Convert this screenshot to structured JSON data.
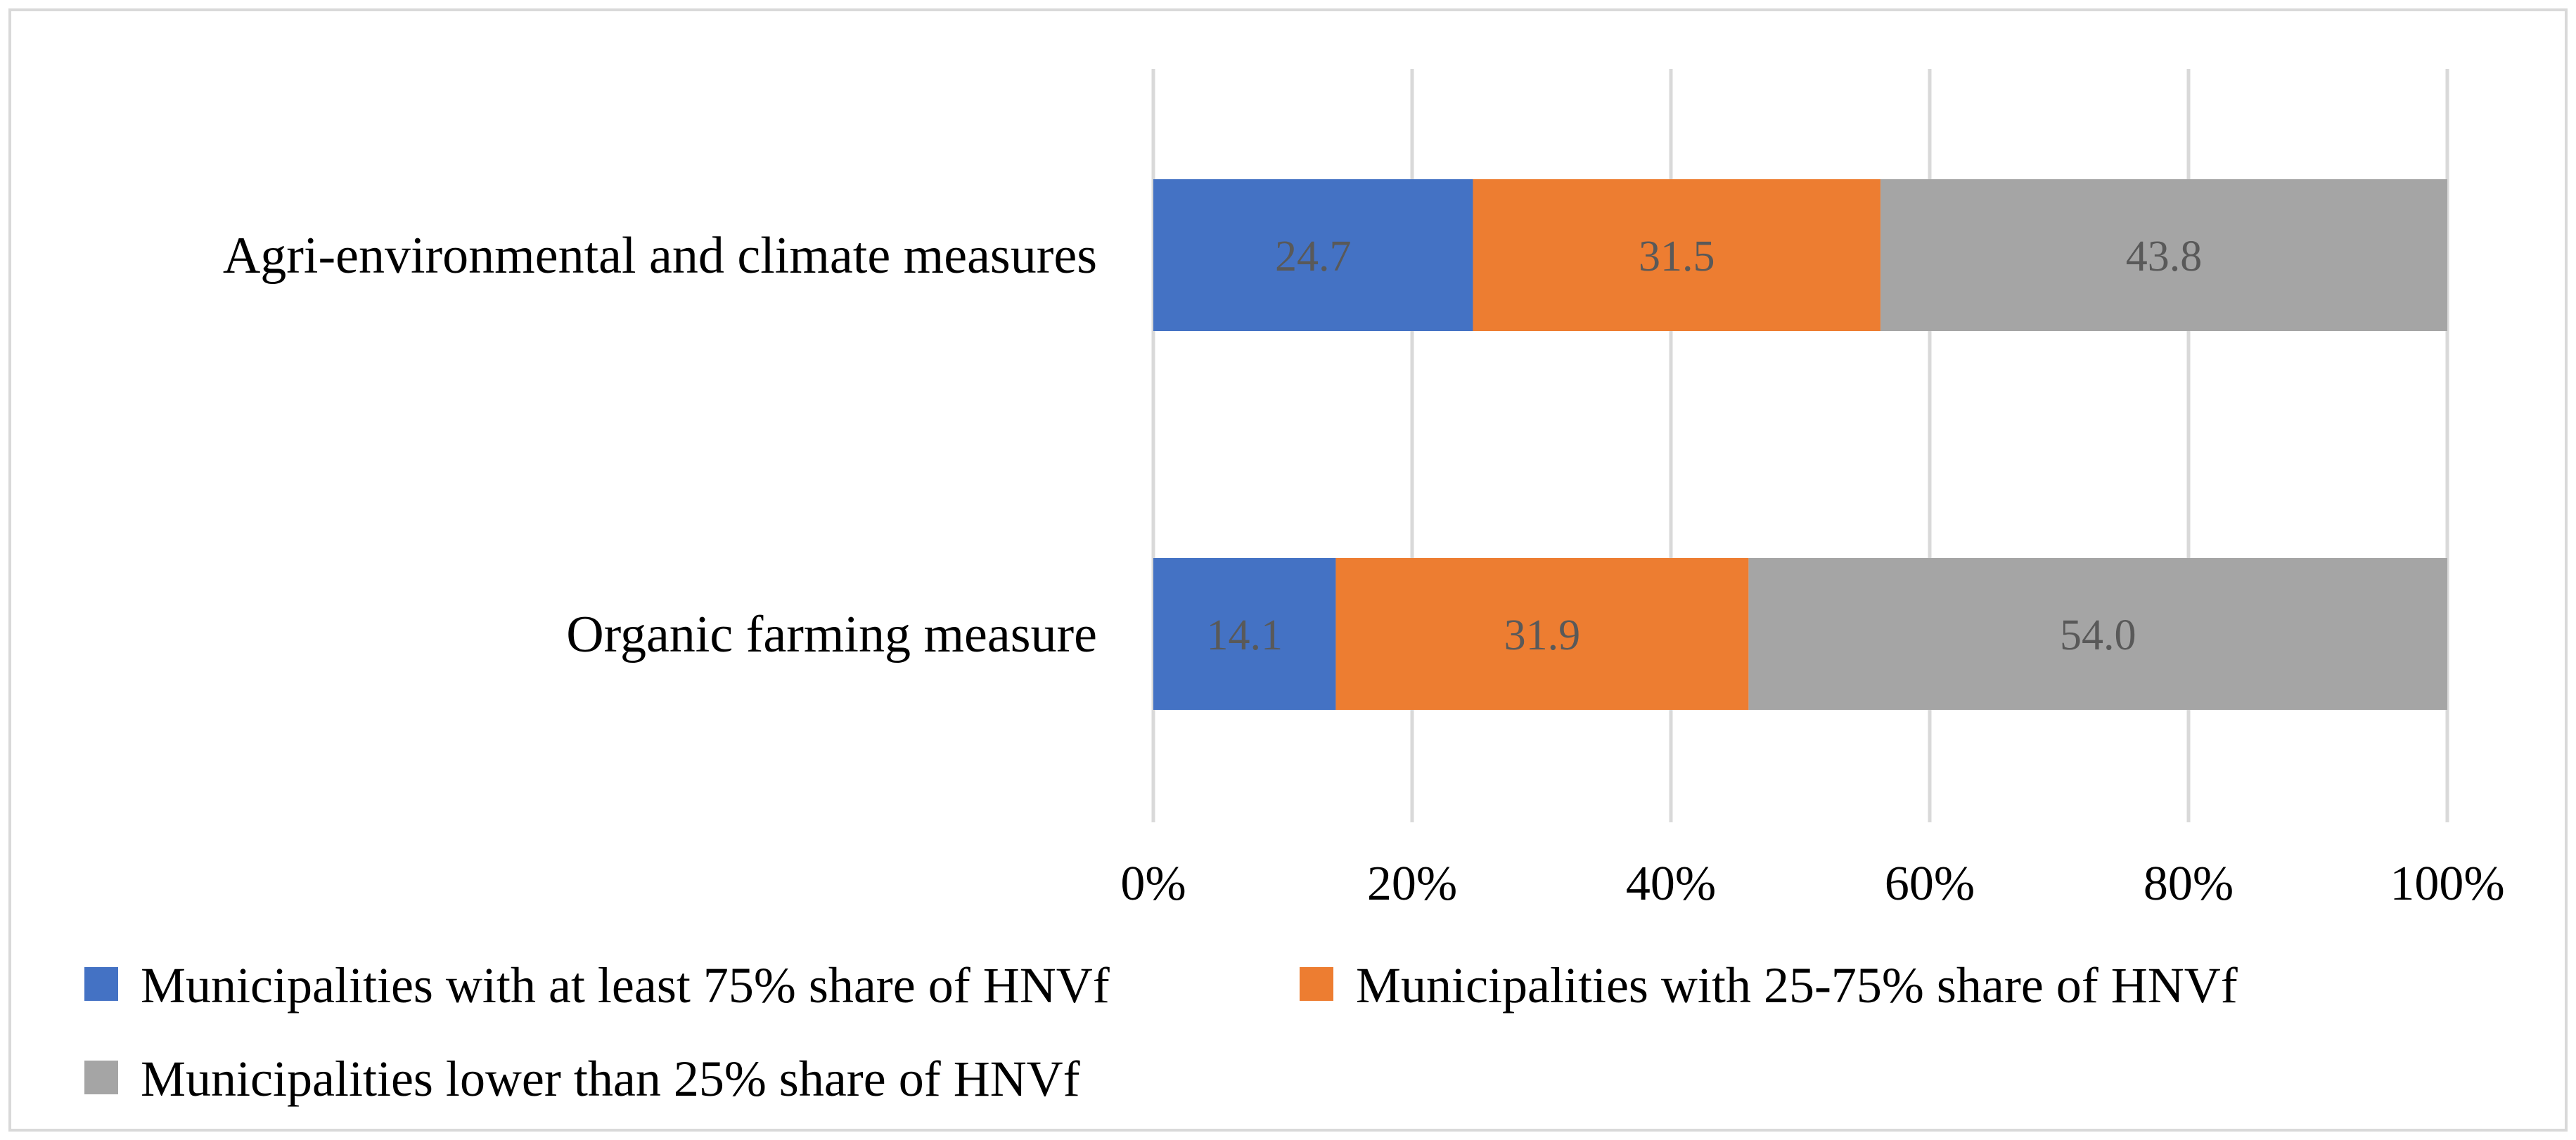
{
  "chart_data": {
    "type": "bar",
    "orientation": "horizontal",
    "stacked": "percent",
    "categories": [
      "Agri-environmental and climate measures",
      "Organic farming measure"
    ],
    "series": [
      {
        "name": "Municipalities with at least 75% share of HNVf",
        "color": "#4472c4",
        "values": [
          24.7,
          14.1
        ],
        "labels": [
          "24.7",
          "14.1"
        ]
      },
      {
        "name": "Municipalities with 25-75% share of HNVf",
        "color": "#ed7d31",
        "values": [
          31.5,
          31.9
        ],
        "labels": [
          "31.5",
          "31.9"
        ]
      },
      {
        "name": "Municipalities lower than 25% share of HNVf",
        "color": "#a5a5a5",
        "values": [
          43.8,
          54.0
        ],
        "labels": [
          "43.8",
          "54.0"
        ]
      }
    ],
    "x_ticks": [
      "0%",
      "20%",
      "40%",
      "60%",
      "80%",
      "100%"
    ],
    "xlim": [
      0,
      100
    ],
    "grid": "vertical",
    "gridline_color": "#d9d9d9",
    "legend_position": "bottom"
  }
}
